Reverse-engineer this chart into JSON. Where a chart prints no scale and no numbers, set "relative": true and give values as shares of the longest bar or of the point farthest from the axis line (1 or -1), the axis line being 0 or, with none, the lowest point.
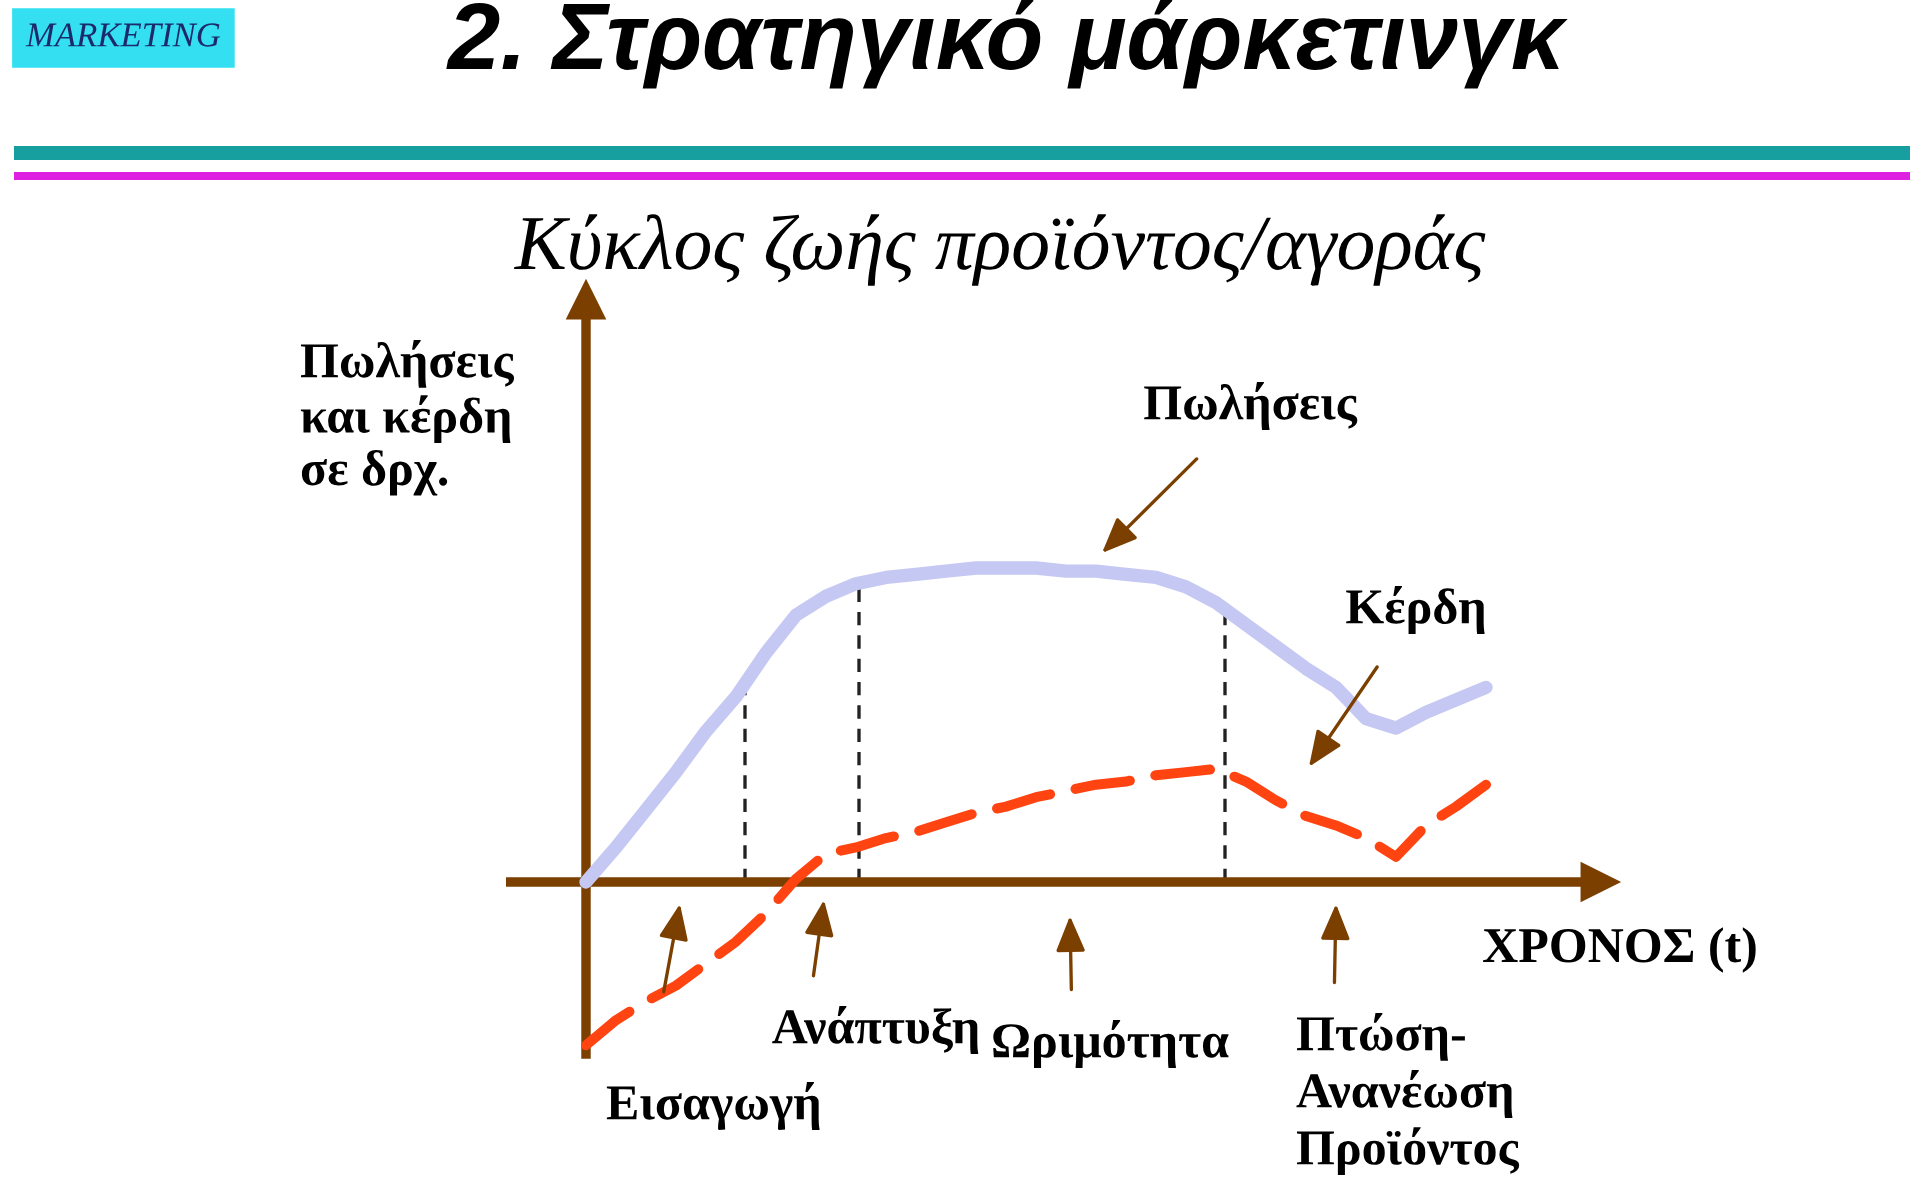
{
  "chart_data": {
    "type": "line",
    "title": "2. Στρατηγικό μάρκετινγκ",
    "subtitle": "Κύκλος ζωής προϊόντος/αγοράς",
    "xlabel": "ΧΡΟΝΟΣ (t)",
    "ylabel": "Πωλήσεις\nκαι κέρδη\nσε δρχ.",
    "relative": true,
    "categories": [
      null,
      null,
      null,
      null,
      null,
      null,
      null,
      null,
      null,
      null,
      null,
      null,
      null,
      null,
      null,
      null,
      null,
      null,
      null,
      null,
      null,
      null,
      null,
      null,
      null,
      null,
      null,
      null,
      null,
      null,
      null
    ],
    "series": [
      {
        "name": "Πωλήσεις",
        "color": "#c5c8f2",
        "line_style": "solid",
        "values": [
          0,
          0.11,
          0.23,
          0.35,
          0.48,
          0.59,
          0.73,
          0.85,
          0.91,
          0.95,
          0.97,
          0.98,
          0.99,
          1,
          1,
          1,
          0.99,
          0.99,
          0.98,
          0.97,
          0.94,
          0.89,
          0.82,
          0.75,
          0.68,
          0.62,
          0.52,
          0.49,
          0.54,
          0.58,
          0.62
        ]
      },
      {
        "name": "Κέρδη",
        "color": "#ff4412",
        "line_style": "dashed",
        "values": [
          -0.52,
          -0.44,
          -0.38,
          -0.33,
          -0.26,
          -0.19,
          -0.1,
          0.01,
          0.09,
          0.11,
          0.14,
          0.16,
          0.19,
          0.22,
          0.24,
          0.27,
          0.29,
          0.31,
          0.32,
          0.34,
          0.35,
          0.36,
          0.32,
          0.26,
          0.21,
          0.18,
          0.14,
          0.08,
          0.18,
          0.24,
          0.31
        ]
      }
    ],
    "ref_lines": [
      {
        "axis": "y",
        "value": 0,
        "color": "#7b3f00",
        "line_style": "solid"
      }
    ],
    "annotations": [
      "MARKETING",
      "Εισαγωγή",
      "Ανάπτυξη",
      "Ωριμότητα",
      "Πτώση-\nΑνανέωση\nΠροϊόντος"
    ]
  }
}
